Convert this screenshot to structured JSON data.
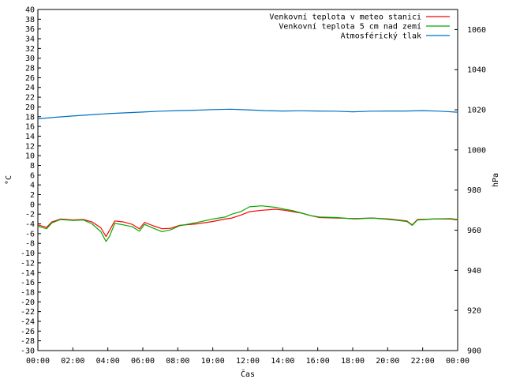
{
  "chart_data": {
    "type": "line",
    "xlabel": "Čas",
    "ylabel_left": "°C",
    "ylabel_right": "hPa",
    "x_ticks": [
      "00:00",
      "02:00",
      "04:00",
      "06:00",
      "08:00",
      "10:00",
      "12:00",
      "14:00",
      "16:00",
      "18:00",
      "20:00",
      "22:00",
      "00:00"
    ],
    "xlim_hours": [
      0,
      24
    ],
    "ylim_left": [
      -30,
      40
    ],
    "y_left_step": 2,
    "ylim_right": [
      900,
      1070
    ],
    "y_right_ticks": [
      900,
      920,
      940,
      960,
      980,
      1000,
      1020,
      1040,
      1060
    ],
    "grid": false,
    "legend_position": "top-right",
    "series": [
      {
        "name": "Venkovní teplota v meteo stanici",
        "color": "#ff0000",
        "axis": "left",
        "points": [
          [
            0,
            -4.2
          ],
          [
            0.5,
            -4.7
          ],
          [
            0.8,
            -3.6
          ],
          [
            1.3,
            -3.0
          ],
          [
            2.0,
            -3.2
          ],
          [
            2.6,
            -3.1
          ],
          [
            3.1,
            -3.6
          ],
          [
            3.6,
            -4.8
          ],
          [
            3.9,
            -6.6
          ],
          [
            4.1,
            -5.3
          ],
          [
            4.4,
            -3.4
          ],
          [
            4.9,
            -3.6
          ],
          [
            5.4,
            -4.1
          ],
          [
            5.8,
            -5.0
          ],
          [
            6.1,
            -3.7
          ],
          [
            6.6,
            -4.4
          ],
          [
            7.1,
            -5.0
          ],
          [
            7.6,
            -4.9
          ],
          [
            8.1,
            -4.3
          ],
          [
            9.1,
            -4.0
          ],
          [
            10.0,
            -3.5
          ],
          [
            10.7,
            -3.0
          ],
          [
            11.1,
            -2.8
          ],
          [
            11.6,
            -2.2
          ],
          [
            12.1,
            -1.5
          ],
          [
            12.8,
            -1.2
          ],
          [
            13.6,
            -1.0
          ],
          [
            14.1,
            -1.2
          ],
          [
            14.6,
            -1.5
          ],
          [
            15.1,
            -1.8
          ],
          [
            15.6,
            -2.3
          ],
          [
            16.1,
            -2.7
          ],
          [
            17.1,
            -2.8
          ],
          [
            18.1,
            -2.9
          ],
          [
            19.1,
            -2.8
          ],
          [
            20.1,
            -3.0
          ],
          [
            20.6,
            -3.2
          ],
          [
            21.1,
            -3.4
          ],
          [
            21.4,
            -4.2
          ],
          [
            21.7,
            -3.1
          ],
          [
            22.6,
            -3.0
          ],
          [
            23.6,
            -3.0
          ],
          [
            24,
            -3.2
          ]
        ]
      },
      {
        "name": "Venkovní teplota 5 cm nad zemí",
        "color": "#00aa00",
        "axis": "left",
        "points": [
          [
            0,
            -4.5
          ],
          [
            0.5,
            -5.0
          ],
          [
            0.8,
            -3.8
          ],
          [
            1.3,
            -3.1
          ],
          [
            2.0,
            -3.3
          ],
          [
            2.6,
            -3.2
          ],
          [
            3.1,
            -4.0
          ],
          [
            3.6,
            -5.6
          ],
          [
            3.9,
            -7.6
          ],
          [
            4.1,
            -6.5
          ],
          [
            4.4,
            -3.9
          ],
          [
            4.9,
            -4.2
          ],
          [
            5.4,
            -4.6
          ],
          [
            5.8,
            -5.5
          ],
          [
            6.1,
            -4.1
          ],
          [
            6.6,
            -4.9
          ],
          [
            7.1,
            -5.6
          ],
          [
            7.6,
            -5.2
          ],
          [
            8.1,
            -4.4
          ],
          [
            9.1,
            -3.7
          ],
          [
            10.0,
            -3.0
          ],
          [
            10.7,
            -2.6
          ],
          [
            11.1,
            -2.0
          ],
          [
            11.6,
            -1.5
          ],
          [
            12.1,
            -0.5
          ],
          [
            12.8,
            -0.3
          ],
          [
            13.6,
            -0.6
          ],
          [
            14.1,
            -1.0
          ],
          [
            14.6,
            -1.3
          ],
          [
            15.1,
            -1.8
          ],
          [
            15.6,
            -2.3
          ],
          [
            16.1,
            -2.6
          ],
          [
            17.1,
            -2.7
          ],
          [
            18.1,
            -3.0
          ],
          [
            19.1,
            -2.8
          ],
          [
            20.1,
            -3.1
          ],
          [
            20.6,
            -3.3
          ],
          [
            21.1,
            -3.5
          ],
          [
            21.4,
            -4.3
          ],
          [
            21.7,
            -3.2
          ],
          [
            22.6,
            -3.0
          ],
          [
            23.6,
            -2.9
          ],
          [
            24,
            -3.1
          ]
        ]
      },
      {
        "name": "Atmosférický tlak",
        "color": "#0070c0",
        "axis": "right",
        "points": [
          [
            0,
            1015.5
          ],
          [
            1,
            1016.3
          ],
          [
            2,
            1016.9
          ],
          [
            3,
            1017.5
          ],
          [
            4,
            1018.1
          ],
          [
            5,
            1018.5
          ],
          [
            6,
            1018.9
          ],
          [
            7,
            1019.3
          ],
          [
            8,
            1019.6
          ],
          [
            9,
            1019.8
          ],
          [
            10,
            1020.1
          ],
          [
            11,
            1020.3
          ],
          [
            12,
            1020.0
          ],
          [
            13,
            1019.6
          ],
          [
            14,
            1019.4
          ],
          [
            15,
            1019.5
          ],
          [
            16,
            1019.4
          ],
          [
            17,
            1019.3
          ],
          [
            18,
            1019.0
          ],
          [
            19,
            1019.3
          ],
          [
            20,
            1019.4
          ],
          [
            21,
            1019.4
          ],
          [
            22,
            1019.6
          ],
          [
            23,
            1019.3
          ],
          [
            24,
            1018.8
          ]
        ]
      }
    ]
  }
}
